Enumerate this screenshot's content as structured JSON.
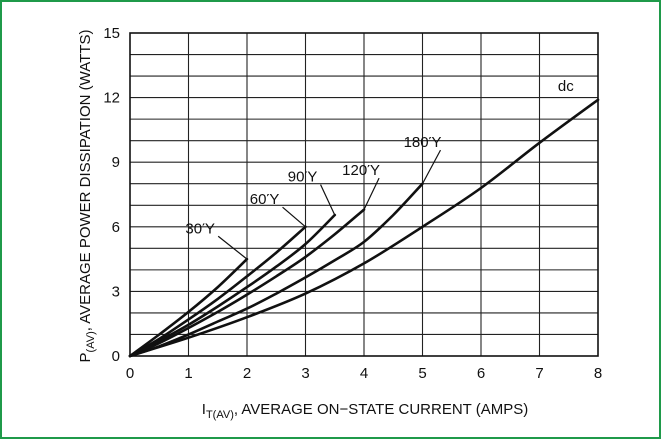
{
  "chart_data": {
    "type": "line",
    "xlabel": {
      "prefix": "I",
      "subscript": "T(AV)",
      "suffix": ", AVERAGE ON−STATE CURRENT (AMPS)"
    },
    "ylabel": {
      "prefix": "P",
      "subscript": "(AV)",
      "suffix": ", AVERAGE POWER DISSIPATION (WATTS)"
    },
    "xlim": [
      0,
      8
    ],
    "ylim": [
      0,
      15
    ],
    "xticks": [
      "0",
      "1",
      "2",
      "3",
      "4",
      "5",
      "6",
      "7",
      "8"
    ],
    "yticks": [
      "0",
      "3",
      "6",
      "9",
      "12",
      "15"
    ],
    "grid": true,
    "series": [
      {
        "name": "30Ύ",
        "x": [
          0,
          0.5,
          1,
          1.5,
          2
        ],
        "y": [
          0,
          1.0,
          2.05,
          3.2,
          4.5
        ]
      },
      {
        "name": "60Ύ",
        "x": [
          0,
          0.5,
          1,
          1.5,
          2,
          2.5,
          3
        ],
        "y": [
          0,
          0.8,
          1.7,
          2.65,
          3.7,
          4.8,
          6.0
        ]
      },
      {
        "name": "90Ύ",
        "x": [
          0,
          0.5,
          1,
          1.5,
          2,
          2.5,
          3,
          3.5
        ],
        "y": [
          0,
          0.7,
          1.45,
          2.3,
          3.2,
          4.15,
          5.2,
          6.55
        ]
      },
      {
        "name": "120Ύ",
        "x": [
          0,
          0.5,
          1,
          1.5,
          2,
          2.5,
          3,
          3.5,
          4
        ],
        "y": [
          0,
          0.6,
          1.3,
          2.05,
          2.85,
          3.7,
          4.6,
          5.65,
          6.8
        ]
      },
      {
        "name": "180Ύ",
        "x": [
          0,
          0.5,
          1,
          1.5,
          2,
          2.5,
          3,
          3.5,
          4,
          4.5,
          5
        ],
        "y": [
          0,
          0.45,
          1.0,
          1.6,
          2.2,
          2.9,
          3.65,
          4.45,
          5.3,
          6.55,
          8.0
        ]
      },
      {
        "name": "dc",
        "x": [
          0,
          1,
          2,
          3,
          4,
          5,
          6,
          7,
          8
        ],
        "y": [
          0,
          0.85,
          1.8,
          2.9,
          4.3,
          6.0,
          7.8,
          9.9,
          11.9
        ]
      }
    ]
  },
  "colors": {
    "frame": "#1f9a4a",
    "line": "#111111",
    "grid": "#222222"
  }
}
